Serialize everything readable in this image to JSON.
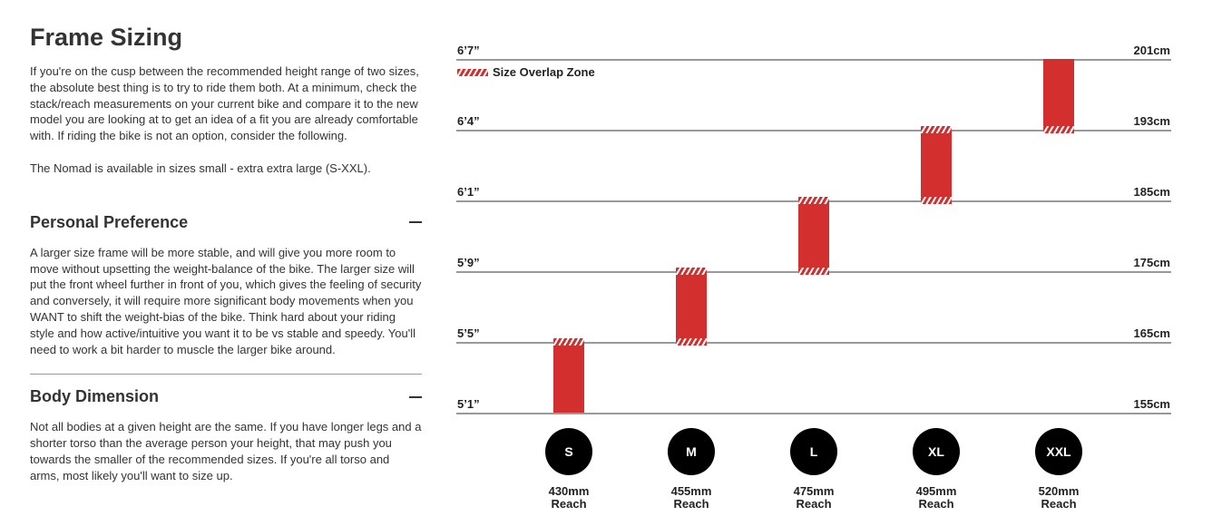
{
  "title": "Frame Sizing",
  "intro": "If you're on the cusp between the recommended height range of two sizes, the absolute best thing is to try to ride them both. At a minimum, check the stack/reach measurements on your current bike and compare it to the new model you are looking at to get an idea of a fit you are already comfortable with. If riding the bike is not an option, consider the following.",
  "availability": "The Nomad is available in sizes small - extra extra large (S-XXL).",
  "sections": [
    {
      "heading": "Personal Preference",
      "icon": "minus-icon",
      "body": "A larger size frame will be more stable, and will give you more room to move without upsetting the weight-balance of the bike. The larger size will put the front wheel further in front of you, which gives the feeling of security and conversely, it will require more significant body movements when you WANT to shift the weight-bias of the bike. Think hard about your riding style and how active/intuitive you want it to be vs stable and speedy. You'll need to work a bit harder to muscle the larger bike around."
    },
    {
      "heading": "Body Dimension",
      "icon": "minus-icon",
      "body": "Not all bodies at a given height are the same. If you have longer legs and a shorter torso than the average person your height, that may push you towards the smaller of the recommended sizes. If you're all torso and arms, most likely you'll want to size up."
    }
  ],
  "chart_data": {
    "type": "range-bar",
    "legend": "Size Overlap Zone",
    "accent": "#d32f2f",
    "ticks": [
      {
        "imperial": "6’7”",
        "metric": "201cm",
        "cm": 201
      },
      {
        "imperial": "6’4”",
        "metric": "193cm",
        "cm": 193
      },
      {
        "imperial": "6’1”",
        "metric": "185cm",
        "cm": 185
      },
      {
        "imperial": "5’9”",
        "metric": "175cm",
        "cm": 175
      },
      {
        "imperial": "5’5”",
        "metric": "165cm",
        "cm": 165
      },
      {
        "imperial": "5’1”",
        "metric": "155cm",
        "cm": 155
      }
    ],
    "sizes": [
      {
        "size": "S",
        "reach": "430mm",
        "reach_label": "Reach",
        "min_cm": 155,
        "max_cm": 165,
        "overlap_top": true,
        "overlap_bottom": false
      },
      {
        "size": "M",
        "reach": "455mm",
        "reach_label": "Reach",
        "min_cm": 165,
        "max_cm": 175,
        "overlap_top": true,
        "overlap_bottom": true
      },
      {
        "size": "L",
        "reach": "475mm",
        "reach_label": "Reach",
        "min_cm": 175,
        "max_cm": 185,
        "overlap_top": true,
        "overlap_bottom": true
      },
      {
        "size": "XL",
        "reach": "495mm",
        "reach_label": "Reach",
        "min_cm": 185,
        "max_cm": 193,
        "overlap_top": true,
        "overlap_bottom": true
      },
      {
        "size": "XXL",
        "reach": "520mm",
        "reach_label": "Reach",
        "min_cm": 193,
        "max_cm": 201,
        "overlap_top": false,
        "overlap_bottom": true
      }
    ]
  }
}
